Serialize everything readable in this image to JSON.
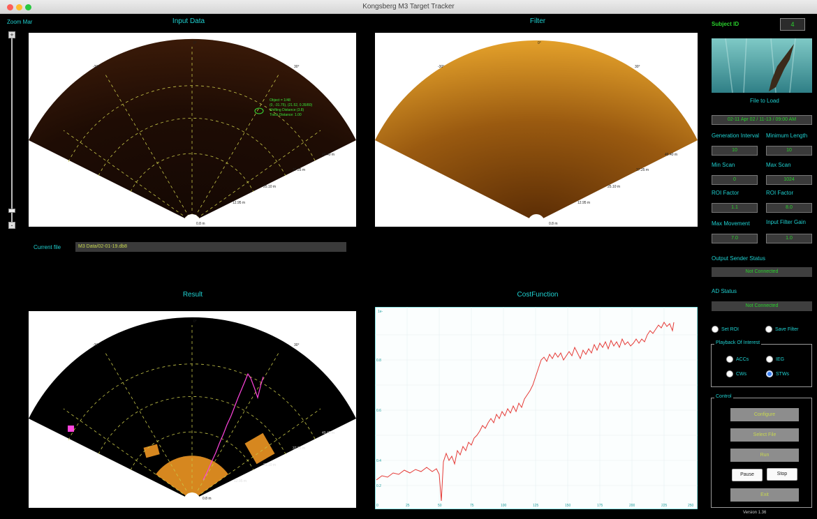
{
  "window": {
    "title": "Kongsberg M3 Target Tracker"
  },
  "panels": {
    "zoom_label": "Zoom Mar",
    "input_title": "Input Data",
    "filter_title": "Filter",
    "result_title": "Result",
    "cost_title": "CostFunction"
  },
  "zoom": {
    "plus": "+",
    "minus": "-"
  },
  "current_file": {
    "label": "Current file",
    "value": "M3 Data/02-01-19.db8"
  },
  "sonar": {
    "range_labels": [
      "0.8 m",
      "12.95 m",
      "25.10 m",
      "37.25 m",
      "49.40 m",
      "61.55 m"
    ],
    "angle_labels": [
      "-30°",
      "0°",
      "30°"
    ],
    "annotation_lines": [
      "Object = 1/48",
      "(0, -31.75), (21.52, 0.35/80)",
      "Shifting Distance (3.8)",
      "Track Distance: 1.00"
    ]
  },
  "cost_chart": {
    "x_ticks": [
      "0",
      "25",
      "50",
      "75",
      "100",
      "125",
      "150",
      "175",
      "200",
      "225",
      "250"
    ],
    "y_ticks": [
      "1e-",
      "0.8",
      "0.6",
      "0.4",
      "0.2"
    ]
  },
  "side": {
    "subject_label": "Subject ID",
    "subject_id": "4",
    "file_to_load_label": "File to Load",
    "file_to_load": "02-11 Apr 02 / 11-13 / 09:00 AM",
    "fields": [
      {
        "label": "Generation Interval",
        "value": "10"
      },
      {
        "label": "Minimum Length",
        "value": "10"
      },
      {
        "label": "Min Scan",
        "value": "0"
      },
      {
        "label": "Max Scan",
        "value": "1024"
      },
      {
        "label": "ROI Factor",
        "value": "1.1"
      },
      {
        "label": "ROI Factor",
        "value": "8.0"
      },
      {
        "label": "Max Movement",
        "value": "7.0"
      },
      {
        "label": "Input Filter Gain",
        "value": "1.0"
      }
    ],
    "output_status_label": "Output Sender Status",
    "output_status": "Not Connected",
    "ad_status_label": "AD Status",
    "ad_status": "Not Connected",
    "set_roi": "Set ROI",
    "save_filter": "Save Filter",
    "playback_group": "Playback Of Interest",
    "playback_options": [
      "ACCs",
      "IEG",
      "CWs",
      "STWs"
    ],
    "playback_selected": "STWs",
    "control_group": "Control",
    "buttons": [
      "Configure",
      "Select File",
      "Run",
      "Exit"
    ],
    "pause": "Pause",
    "stop": "Stop",
    "version": "Version 1.36"
  },
  "colors": {
    "accent": "#1fd1d1",
    "result_roi": "#d6871f",
    "track": "#ff44dd",
    "cost_line": "#e53935"
  }
}
